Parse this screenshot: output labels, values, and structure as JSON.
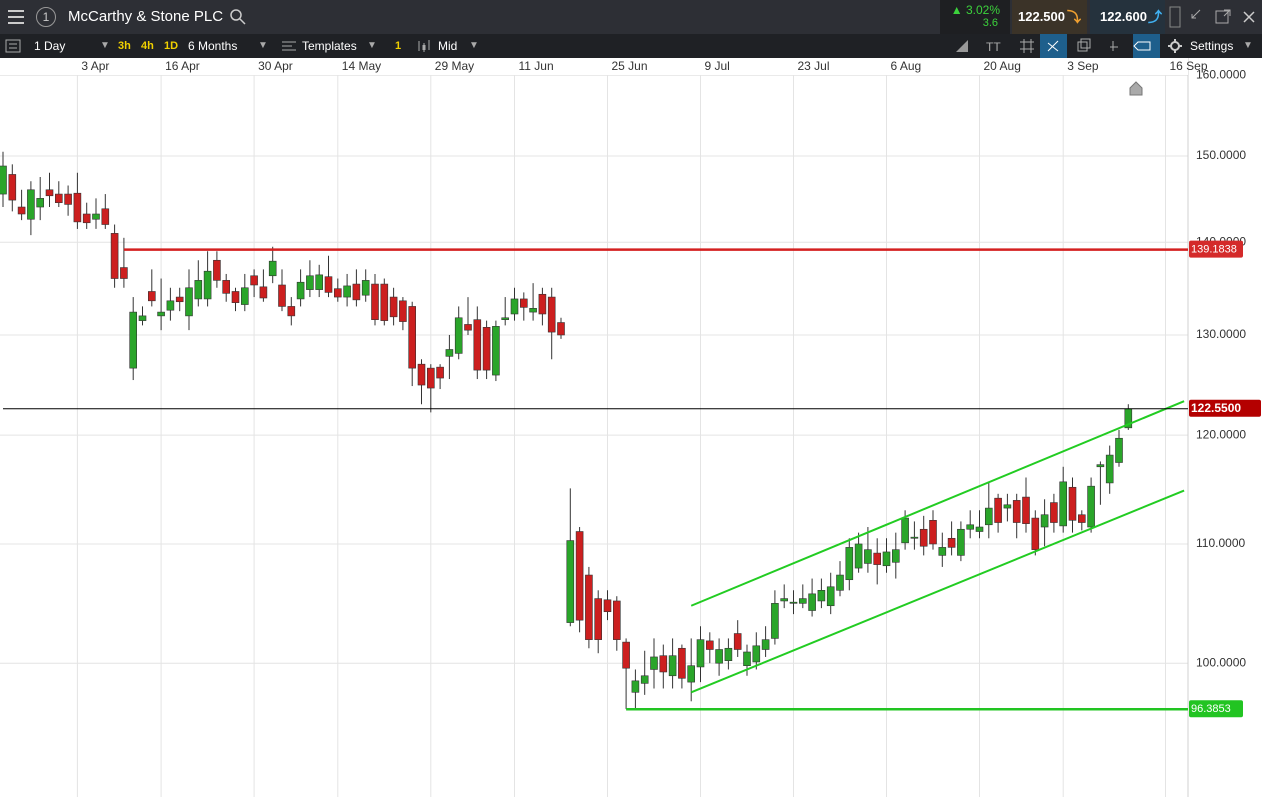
{
  "header": {
    "title": "McCarthy & Stone PLC",
    "badge": "1",
    "change_pct": "3.02%",
    "change": "3.6",
    "sell": "122.500",
    "buy": "122.600"
  },
  "toolbar": {
    "interval": "1 Day",
    "quick": [
      "3h",
      "4h",
      "1D"
    ],
    "range": "6 Months",
    "templates": "Templates",
    "count": "1",
    "price_type": "Mid",
    "settings": "Settings"
  },
  "chart_data": {
    "type": "candlestick",
    "log_scale": true,
    "grid": true,
    "up_color": "#2aa52a",
    "down_color": "#cc1f1f",
    "categories": [
      null,
      null,
      null,
      null,
      null,
      null,
      null,
      null,
      "3 Apr",
      null,
      null,
      null,
      null,
      null,
      null,
      null,
      null,
      "16 Apr",
      null,
      null,
      null,
      null,
      null,
      null,
      null,
      null,
      null,
      "30 Apr",
      null,
      null,
      null,
      null,
      null,
      null,
      null,
      null,
      "14 May",
      null,
      null,
      null,
      null,
      null,
      null,
      null,
      null,
      null,
      "29 May",
      null,
      null,
      null,
      null,
      null,
      null,
      null,
      null,
      "11 Jun",
      null,
      null,
      null,
      null,
      null,
      null,
      null,
      null,
      null,
      "25 Jun",
      null,
      null,
      null,
      null,
      null,
      null,
      null,
      null,
      null,
      "9 Jul",
      null,
      null,
      null,
      null,
      null,
      null,
      null,
      null,
      null,
      "23 Jul",
      null,
      null,
      null,
      null,
      null,
      null,
      null,
      null,
      null,
      "6 Aug",
      null,
      null,
      null,
      null,
      null,
      null,
      null,
      null,
      null,
      "20 Aug",
      null,
      null,
      null,
      null,
      null,
      null,
      null,
      null,
      "3 Sep",
      null,
      null,
      null,
      null,
      null,
      null,
      null,
      null,
      null,
      null,
      "16 Sep",
      null,
      null
    ],
    "open": [
      145.5,
      147.8,
      144,
      142.6,
      144,
      146,
      145.5,
      145.5,
      145.6,
      143.2,
      142.6,
      143.8,
      141,
      137.2,
      126.6,
      131.5,
      134.6,
      132,
      132.6,
      134,
      132,
      133.8,
      133.8,
      138,
      135.8,
      134.6,
      133.2,
      136.3,
      135.1,
      136.3,
      135.3,
      133,
      133.8,
      134.8,
      134.8,
      136.2,
      134.9,
      134,
      135.4,
      134.2,
      135.4,
      135.4,
      134,
      133.6,
      133,
      127,
      126.6,
      126.7,
      127.8,
      128.1,
      131.1,
      131.6,
      130.8,
      125.9,
      131.6,
      132.2,
      133.8,
      132.4,
      134.3,
      134,
      131.3,
      103.3,
      111.1,
      107.3,
      105.3,
      105.2,
      105.1,
      101.7,
      97.7,
      98.4,
      99.5,
      100.6,
      99,
      101.2,
      98.5,
      99.7,
      101.8,
      100,
      100.2,
      102.4,
      99.8,
      100.1,
      101.1,
      102,
      105.1,
      104.9,
      104.9,
      104.3,
      105.1,
      104.7,
      106,
      106.9,
      107.9,
      108.3,
      109.2,
      108.1,
      108.4,
      110.1,
      110.5,
      111.3,
      112.1,
      109,
      110.5,
      109,
      111.3,
      111.1,
      111.7,
      114.1,
      113.2,
      113.9,
      114.2,
      112.3,
      111.5,
      113.7,
      111.6,
      115.1,
      112.6,
      111.5,
      117,
      115.5,
      117.4,
      120.7,
      null,
      null,
      null,
      null,
      null,
      null
    ],
    "high": [
      150.5,
      149,
      146,
      147,
      147.5,
      148,
      147,
      146.5,
      148,
      144.5,
      145,
      145.5,
      142,
      140.5,
      134,
      133,
      137,
      136,
      135,
      135,
      137,
      138,
      139,
      139,
      136.5,
      135,
      136.5,
      137,
      137,
      139.5,
      137,
      134,
      137,
      138,
      137.5,
      138.5,
      136,
      136.5,
      137,
      137,
      136.5,
      136,
      135,
      134,
      133.5,
      127.5,
      127,
      127,
      130,
      133,
      134,
      133,
      131.5,
      131.5,
      134,
      135,
      134.5,
      135.5,
      135,
      135,
      131.8,
      115,
      111.5,
      108,
      106,
      106,
      105.5,
      102,
      99.5,
      101,
      102,
      101.5,
      102,
      101.5,
      102,
      103,
      102.5,
      102,
      102,
      103.5,
      101.5,
      102.5,
      103,
      106,
      106.5,
      106,
      106.5,
      107,
      107,
      107.5,
      108.5,
      110.5,
      111,
      111.5,
      110.5,
      110.5,
      111,
      113,
      112,
      112.5,
      113,
      111,
      112,
      112,
      113,
      113,
      115.5,
      114.5,
      114.5,
      114.5,
      116,
      113,
      114,
      114.5,
      117,
      116,
      113,
      116,
      117.5,
      119,
      120.5,
      123,
      null,
      null,
      null,
      null,
      null,
      null
    ],
    "low": [
      144,
      143.5,
      142.5,
      140.8,
      142.5,
      144,
      144,
      143,
      141.5,
      141.5,
      141.5,
      141.5,
      135,
      135,
      125.4,
      131,
      133,
      130.5,
      131.5,
      132.5,
      130.5,
      133,
      133,
      135,
      133.5,
      132.5,
      132.5,
      134,
      133.5,
      135.5,
      132.5,
      131,
      133,
      134,
      134,
      134,
      133.5,
      133,
      133,
      133.5,
      131,
      131,
      131,
      130.5,
      124.8,
      123,
      122.2,
      124.5,
      125.5,
      127.5,
      130,
      125.5,
      125.5,
      125.3,
      131,
      131.5,
      131.5,
      131.5,
      131,
      127.5,
      129.6,
      103,
      102.5,
      101.2,
      100.8,
      103.5,
      101,
      96.4,
      96.4,
      97.5,
      98,
      98,
      98,
      98,
      97,
      98.5,
      100,
      99,
      99.5,
      100.5,
      99,
      99.5,
      100.5,
      101.5,
      104.5,
      104,
      104.5,
      103.8,
      104.5,
      104,
      105.5,
      106,
      107.5,
      107.5,
      106.5,
      107.5,
      107,
      109.5,
      109.5,
      109,
      109.5,
      108,
      109,
      108.5,
      110.5,
      110.5,
      110.5,
      111,
      112,
      110.5,
      111,
      109,
      109.8,
      111,
      111,
      111,
      111.2,
      111,
      113.5,
      114.5,
      117,
      120.5,
      null,
      null,
      null,
      null,
      null,
      null
    ],
    "close": [
      148.8,
      144.8,
      143.2,
      146,
      145,
      145.3,
      144.5,
      144.3,
      142.3,
      142.2,
      143.2,
      142,
      136,
      136,
      132.4,
      132,
      133.6,
      132.4,
      133.6,
      133.5,
      135,
      135.8,
      136.8,
      135.8,
      134.4,
      133.4,
      135,
      135.3,
      133.9,
      137.9,
      133,
      132,
      135.6,
      136.3,
      136.4,
      134.5,
      134,
      135.2,
      133.7,
      135.8,
      131.6,
      131.5,
      131.9,
      131.4,
      126.6,
      124.9,
      124.6,
      125.6,
      128.5,
      131.8,
      130.5,
      126.4,
      126.4,
      130.9,
      131.8,
      133.8,
      132.9,
      132.8,
      132.2,
      130.3,
      130,
      110.3,
      103.5,
      101.9,
      101.9,
      104.2,
      101.9,
      99.6,
      98.6,
      99,
      100.5,
      99.3,
      100.6,
      98.8,
      99.8,
      101.9,
      101.1,
      101.1,
      101.2,
      101.1,
      100.9,
      101.4,
      101.9,
      104.9,
      105.3,
      105,
      105.3,
      105.7,
      106,
      106.3,
      107.3,
      109.7,
      110,
      109.5,
      108.2,
      109.3,
      109.5,
      112.3,
      110.6,
      109.8,
      110,
      109.7,
      109.7,
      111.3,
      111.7,
      111.5,
      113.2,
      111.9,
      113.5,
      111.9,
      111.8,
      109.5,
      112.6,
      111.9,
      115.6,
      112.1,
      111.9,
      115.2,
      117.2,
      118.1,
      119.7,
      122.55,
      null,
      null,
      null,
      null,
      null,
      null
    ],
    "ylim": [
      90,
      161.7
    ],
    "yticks": [
      {
        "value": 100,
        "label": "100.0000"
      },
      {
        "value": 110,
        "label": "110.0000"
      },
      {
        "value": 120,
        "label": "120.0000"
      },
      {
        "value": 130,
        "label": "130.0000"
      },
      {
        "value": 140,
        "label": "140.0000"
      },
      {
        "value": 150,
        "label": "150.0000"
      },
      {
        "value": 160,
        "label": "160.0000"
      }
    ],
    "hlines": [
      {
        "value": 139.1838,
        "color": "#d42020",
        "label_color": "#d42a2a",
        "start": 13
      },
      {
        "value": 96.3853,
        "color": "#22c422",
        "label_color": "#22c422",
        "start": 67
      },
      {
        "value": 122.55,
        "label": "122.5500",
        "color": "#000000",
        "label_color": "#b40000",
        "start": 0
      }
    ],
    "trendlines": [
      {
        "color": "#22cc22",
        "start": [
          74,
          104.7
        ],
        "end": [
          127,
          123.3
        ]
      },
      {
        "color": "#22cc22",
        "start": [
          74,
          97.7
        ],
        "end": [
          127,
          114.8
        ]
      }
    ]
  }
}
